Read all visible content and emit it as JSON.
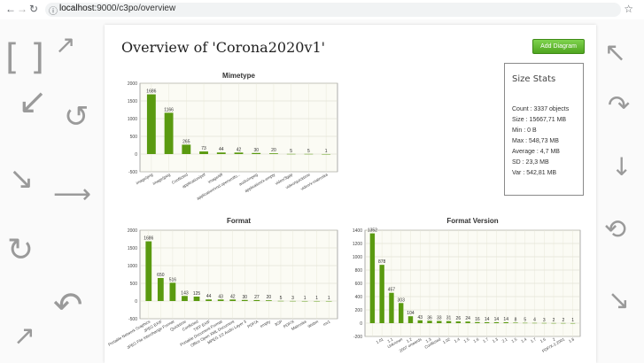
{
  "browser": {
    "url_host": "localhost",
    "url_rest": ":9000/c3po/overview",
    "back_icon": "arrow-left-icon",
    "forward_icon": "arrow-right-icon",
    "reload_icon": "reload-icon",
    "info_icon": "info-icon",
    "star_icon": "star-icon"
  },
  "page": {
    "title": "Overview of 'Corona2020v1'",
    "add_button_label": "Add Diagram"
  },
  "stats": {
    "title": "Size Stats",
    "lines": [
      "Count : 3337 objects",
      "Size : 15667,71 MB",
      "Min : 0 B",
      "Max : 548,73 MB",
      "Average : 4,7 MB",
      "SD : 23,3 MB",
      "Var : 542,81 MB"
    ]
  },
  "chart_data": [
    {
      "type": "bar",
      "title": "Mimetype",
      "categories": [
        "image/png",
        "image/jpeg",
        "Conflicted",
        "application/pdf",
        "image/tiff",
        "application/vnd.openxmlfo...",
        "audio/mpeg",
        "application/x-empty",
        "video/3gpp",
        "video/quicktime",
        "video/x-matroska"
      ],
      "values": [
        1686,
        1166,
        265,
        73,
        44,
        42,
        30,
        20,
        5,
        5,
        1
      ],
      "yticks": [
        -500,
        0,
        500,
        1000,
        1500,
        2000
      ],
      "ylim": [
        -500,
        2000
      ],
      "grid": true,
      "bar_color": "#5a9a10"
    },
    {
      "type": "bar",
      "title": "Format",
      "categories": [
        "Portable Network Graphics",
        "JPEG EXIF",
        "JPEG File Interchange Format",
        "Quicktime",
        "Conflicted",
        "TIFF EXIF",
        "Portable Document Format",
        "Office Open XML Document",
        "MPEG 1/2 Audio Layer 3",
        "PDF/A",
        "empty",
        "3GP",
        "PDF/X",
        "Matroska",
        "Webm",
        "mv1"
      ],
      "values": [
        1686,
        650,
        516,
        143,
        125,
        44,
        43,
        42,
        30,
        27,
        20,
        5,
        3,
        1,
        1,
        1
      ],
      "yticks": [
        -500,
        0,
        500,
        1000,
        1500,
        2000
      ],
      "ylim": [
        -500,
        2000
      ],
      "grid": true,
      "bar_color": "#5a9a10"
    },
    {
      "type": "bar",
      "title": "Format Version",
      "categories": [
        "",
        "1.01",
        "1.1",
        "Unknown",
        "1.2",
        "2007 onwards",
        "1.3",
        "Conflicted",
        "1.02",
        "1.4",
        "1.5",
        "1.6",
        "1.7",
        "1.3",
        "2.1",
        "1.5",
        "1.4",
        "1.7",
        "1.6",
        "2",
        "PDF/X-1:2001",
        "1.8"
      ],
      "values": [
        1352,
        878,
        457,
        303,
        104,
        43,
        36,
        33,
        31,
        26,
        24,
        16,
        14,
        14,
        14,
        8,
        5,
        4,
        3,
        2,
        2,
        1
      ],
      "yticks": [
        -200,
        0,
        200,
        400,
        600,
        800,
        1000,
        1200,
        1400
      ],
      "ylim": [
        -200,
        1400
      ],
      "grid": true,
      "bar_color": "#5a9a10"
    }
  ]
}
